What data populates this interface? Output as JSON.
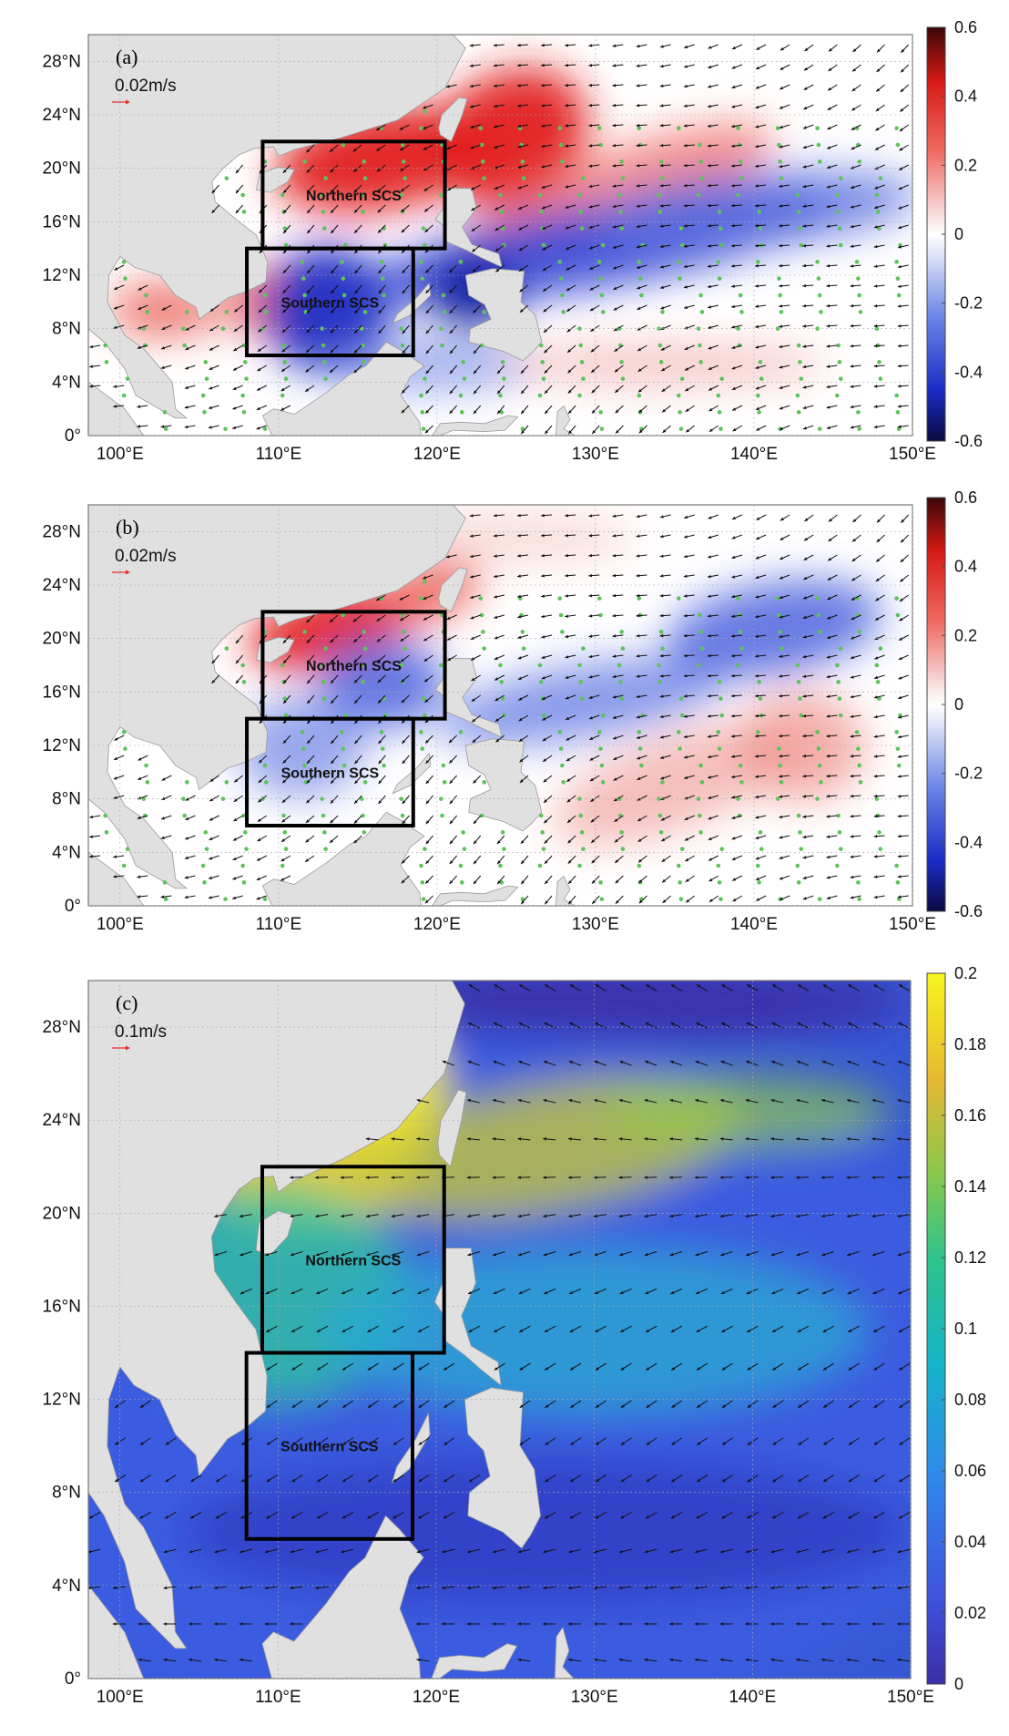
{
  "panels": [
    {
      "tag": "(a)",
      "scale_label": "0.02m/s",
      "colorbar": {
        "min": -0.6,
        "max": 0.6,
        "colormap": "diverging blue-white-red",
        "ticks": [
          "0.6",
          "0.4",
          "0.2",
          "0",
          "-0.2",
          "-0.4",
          "-0.6"
        ]
      },
      "stippling": true
    },
    {
      "tag": "(b)",
      "scale_label": "0.02m/s",
      "colorbar": {
        "min": -0.6,
        "max": 0.6,
        "colormap": "diverging blue-white-red",
        "ticks": [
          "0.6",
          "0.4",
          "0.2",
          "0",
          "-0.2",
          "-0.4",
          "-0.6"
        ]
      },
      "stippling": true
    },
    {
      "tag": "(c)",
      "scale_label": "0.1m/s",
      "colorbar": {
        "min": 0,
        "max": 0.2,
        "colormap": "parula",
        "ticks": [
          "0.2",
          "0.18",
          "0.16",
          "0.14",
          "0.12",
          "0.1",
          "0.08",
          "0.06",
          "0.04",
          "0.02",
          "0"
        ]
      },
      "stippling": false
    }
  ],
  "map": {
    "lon_range": [
      98,
      150
    ],
    "lat_range": [
      0,
      30
    ],
    "lat_ticks": [
      "28°N",
      "24°N",
      "20°N",
      "16°N",
      "12°N",
      "8°N",
      "4°N",
      "0°"
    ],
    "lon_ticks": [
      "100°E",
      "110°E",
      "120°E",
      "130°E",
      "140°E",
      "150°E"
    ],
    "land_color": "#e0e0e0",
    "regions": [
      {
        "name": "Northern SCS",
        "lon": [
          109,
          120.5
        ],
        "lat": [
          14,
          22
        ]
      },
      {
        "name": "Southern SCS",
        "lon": [
          108,
          118.5
        ],
        "lat": [
          6,
          14
        ]
      }
    ]
  }
}
